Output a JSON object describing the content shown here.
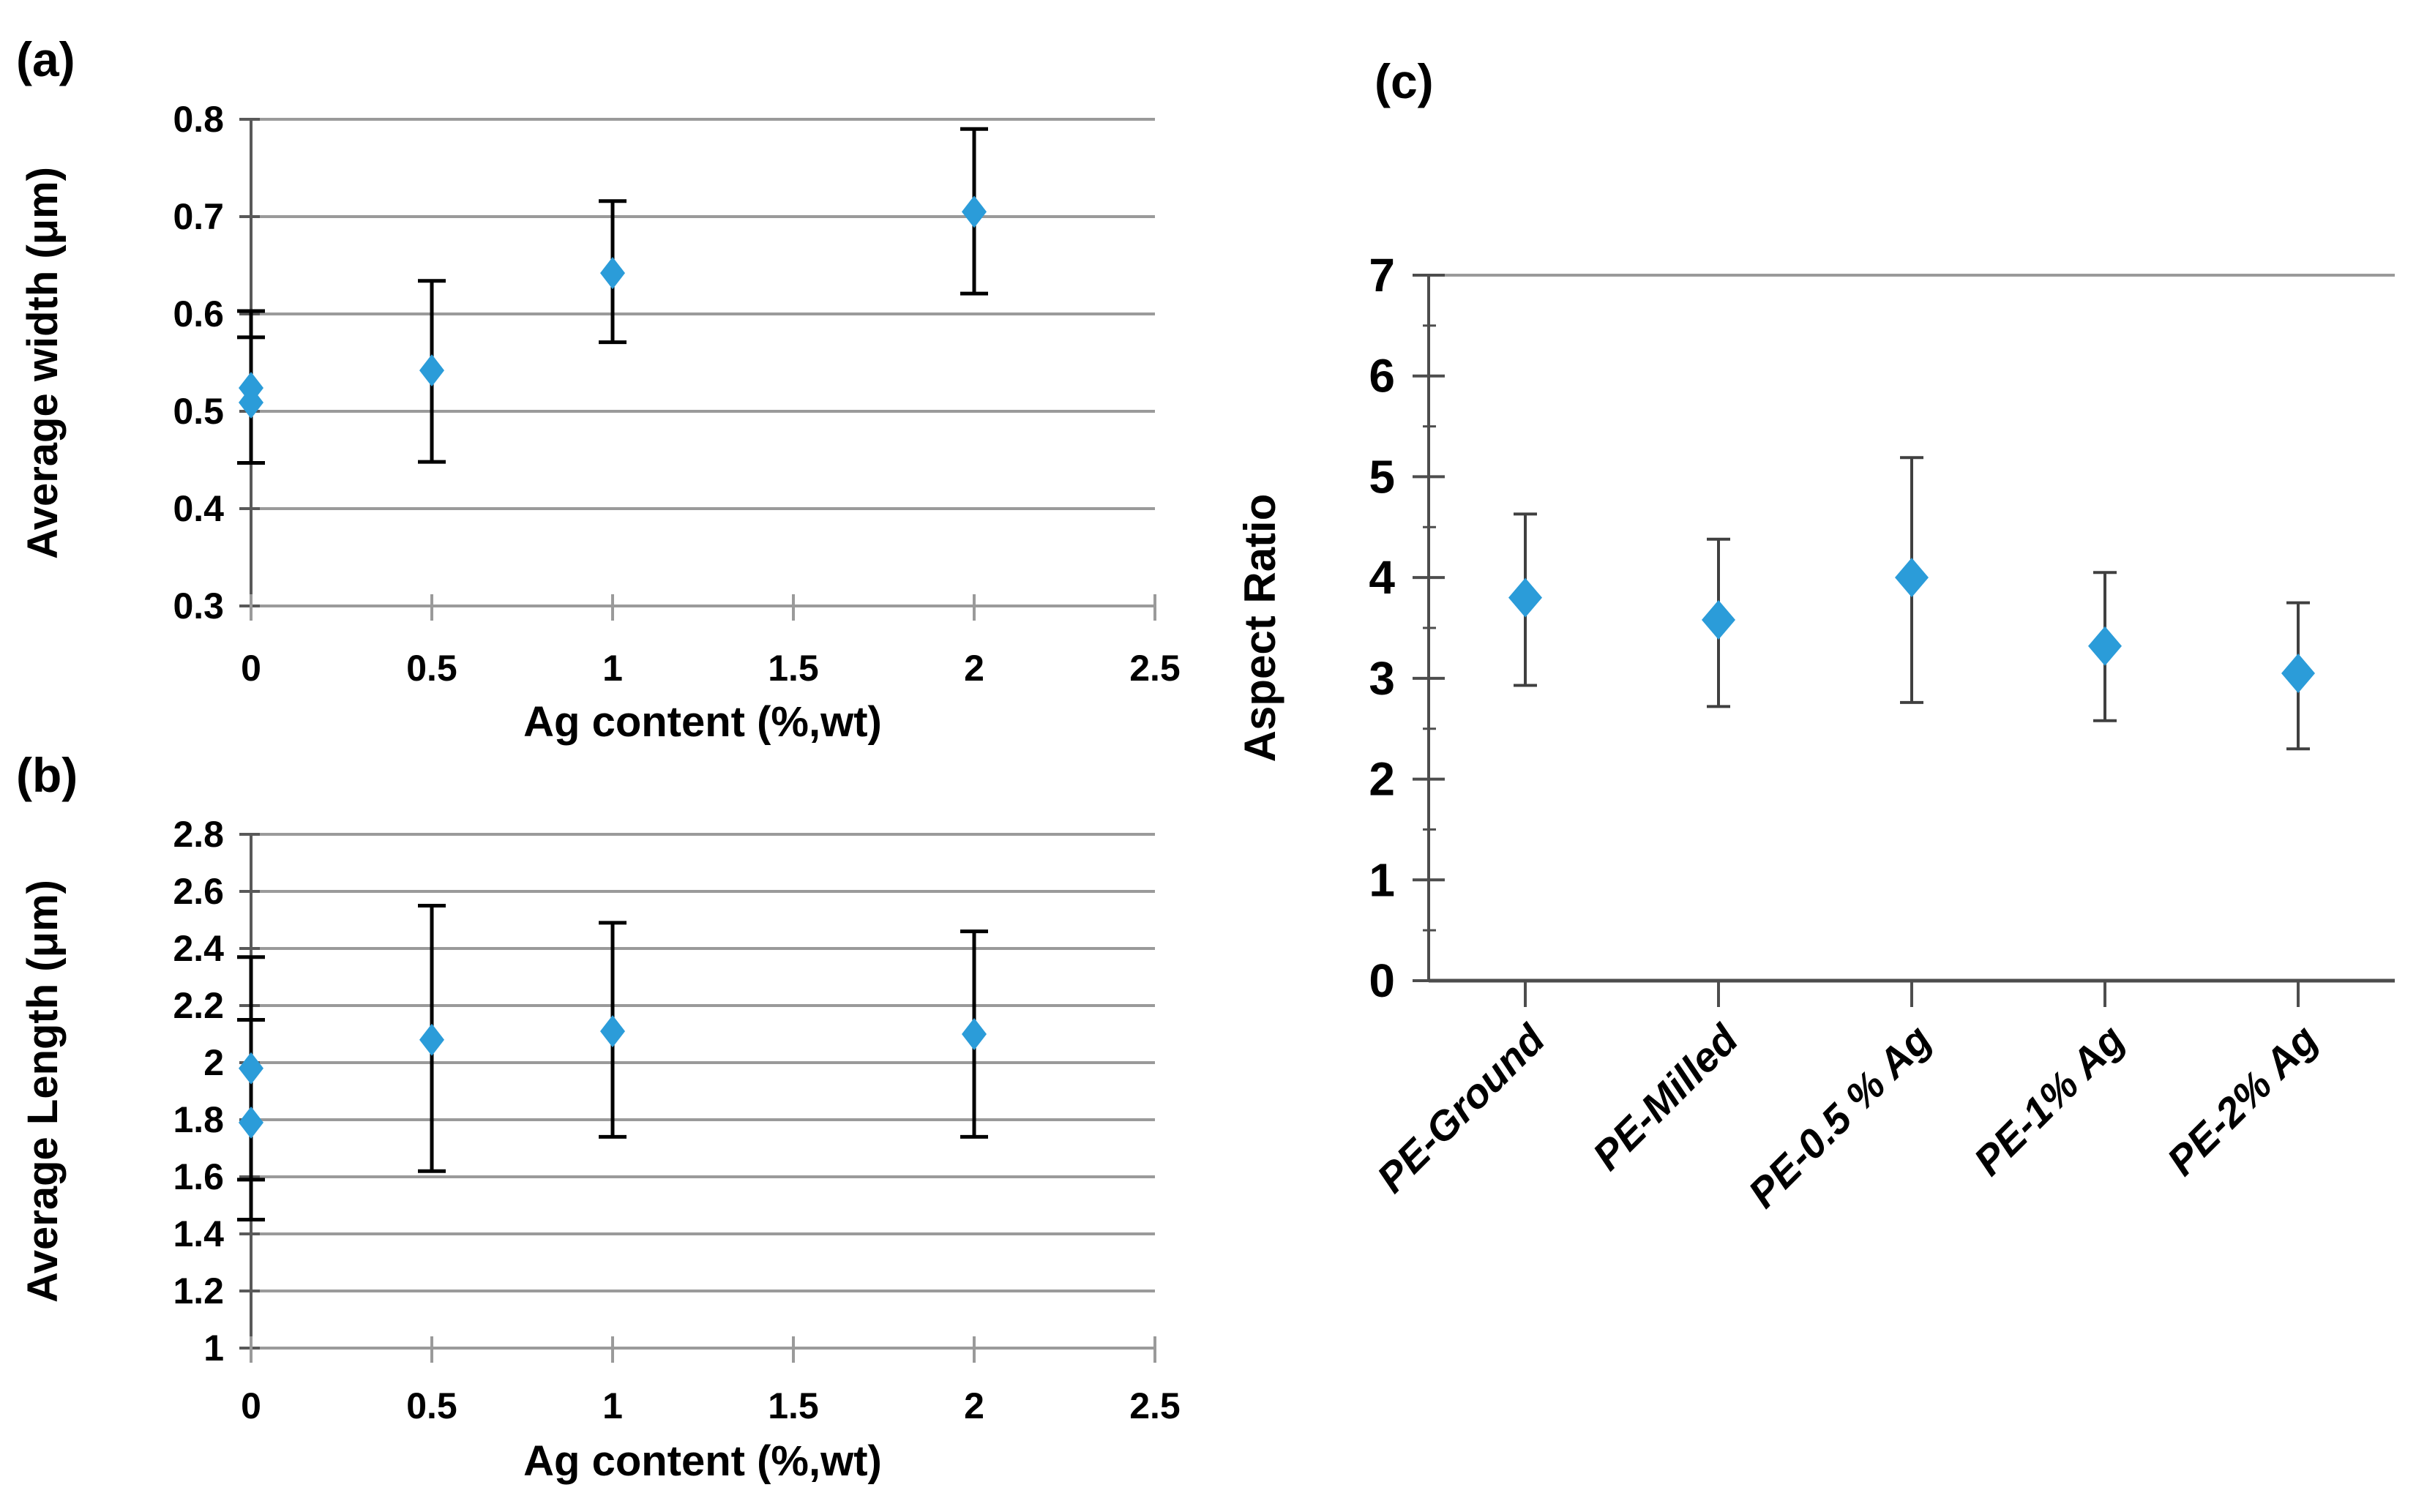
{
  "figure_type": "scientific-multipanel-scatter-figure",
  "colors": {
    "background": "#ffffff",
    "marker_fill": "#2B9CD9",
    "gridline": "#9A9A9A",
    "axis_ab": "#595959",
    "axis_c": "#4D4D4D",
    "error_bar_ab": "#000000",
    "error_bar_c": "#404040",
    "text": "#000000"
  },
  "chart_data": [
    {
      "id": "a",
      "type": "scatter",
      "panel_label": "(a)",
      "xlabel": "Ag content (%,wt)",
      "ylabel": "Average width (μm)",
      "xlim": [
        0,
        2.5
      ],
      "ylim": [
        0.3,
        0.8
      ],
      "grid": "horizontal-all",
      "legend": "none",
      "xticks": [
        {
          "v": 0,
          "label": "0"
        },
        {
          "v": 0.5,
          "label": "0.5"
        },
        {
          "v": 1,
          "label": "1"
        },
        {
          "v": 1.5,
          "label": "1.5"
        },
        {
          "v": 2,
          "label": "2"
        },
        {
          "v": 2.5,
          "label": "2.5"
        }
      ],
      "yticks": [
        {
          "v": 0.8,
          "label": "0.8"
        },
        {
          "v": 0.7,
          "label": "0.7"
        },
        {
          "v": 0.6,
          "label": "0.6"
        },
        {
          "v": 0.5,
          "label": "0.5"
        },
        {
          "v": 0.4,
          "label": "0.4"
        },
        {
          "v": 0.3,
          "label": "0.3"
        }
      ],
      "points": [
        {
          "x": 0,
          "y": 0.524,
          "err_low": 0.447,
          "err_high": 0.603
        },
        {
          "x": 0,
          "y": 0.509,
          "err_low": 0.447,
          "err_high": 0.576
        },
        {
          "x": 0.5,
          "y": 0.542,
          "err_low": 0.448,
          "err_high": 0.634
        },
        {
          "x": 1,
          "y": 0.642,
          "err_low": 0.571,
          "err_high": 0.716
        },
        {
          "x": 2,
          "y": 0.705,
          "err_low": 0.621,
          "err_high": 0.79
        }
      ]
    },
    {
      "id": "b",
      "type": "scatter",
      "panel_label": "(b)",
      "xlabel": "Ag content (%,wt)",
      "ylabel": "Average Length (μm)",
      "xlim": [
        0,
        2.5
      ],
      "ylim": [
        1,
        2.8
      ],
      "grid": "horizontal-all",
      "legend": "none",
      "xticks": [
        {
          "v": 0,
          "label": "0"
        },
        {
          "v": 0.5,
          "label": "0.5"
        },
        {
          "v": 1,
          "label": "1"
        },
        {
          "v": 1.5,
          "label": "1.5"
        },
        {
          "v": 2,
          "label": "2"
        },
        {
          "v": 2.5,
          "label": "2.5"
        }
      ],
      "yticks": [
        {
          "v": 2.8,
          "label": "2.8"
        },
        {
          "v": 2.6,
          "label": "2.6"
        },
        {
          "v": 2.4,
          "label": "2.4"
        },
        {
          "v": 2.2,
          "label": "2.2"
        },
        {
          "v": 2.0,
          "label": "2"
        },
        {
          "v": 1.8,
          "label": "1.8"
        },
        {
          "v": 1.6,
          "label": "1.6"
        },
        {
          "v": 1.4,
          "label": "1.4"
        },
        {
          "v": 1.2,
          "label": "1.2"
        },
        {
          "v": 1.0,
          "label": "1"
        }
      ],
      "points": [
        {
          "x": 0,
          "y": 1.98,
          "err_low": 1.59,
          "err_high": 2.37
        },
        {
          "x": 0,
          "y": 1.79,
          "err_low": 1.45,
          "err_high": 2.15
        },
        {
          "x": 0.5,
          "y": 2.08,
          "err_low": 1.62,
          "err_high": 2.55
        },
        {
          "x": 1,
          "y": 2.11,
          "err_low": 1.74,
          "err_high": 2.49
        },
        {
          "x": 2,
          "y": 2.1,
          "err_low": 1.74,
          "err_high": 2.46
        }
      ]
    },
    {
      "id": "c",
      "type": "scatter-category",
      "panel_label": "(c)",
      "xlabel": "",
      "ylabel": "Aspect Ratio",
      "ylim": [
        0,
        7
      ],
      "grid": "top-border-only",
      "legend": "none",
      "categories": [
        "PE-Ground",
        "PE-Milled",
        "PE-0.5 % Ag",
        "PE-1% Ag",
        "PE-2% Ag"
      ],
      "yticks": [
        {
          "v": 7,
          "label": "7"
        },
        {
          "v": 6,
          "label": "6"
        },
        {
          "v": 5,
          "label": "5"
        },
        {
          "v": 4,
          "label": "4"
        },
        {
          "v": 3,
          "label": "3"
        },
        {
          "v": 2,
          "label": "2"
        },
        {
          "v": 1,
          "label": "1"
        },
        {
          "v": 0,
          "label": "0"
        }
      ],
      "minor_ytick_step": 0.5,
      "points": [
        {
          "category": "PE-Ground",
          "y": 3.8,
          "err_low": 2.93,
          "err_high": 4.63
        },
        {
          "category": "PE-Milled",
          "y": 3.58,
          "err_low": 2.72,
          "err_high": 4.38
        },
        {
          "category": "PE-0.5 % Ag",
          "y": 4.0,
          "err_low": 2.76,
          "err_high": 5.19
        },
        {
          "category": "PE-1% Ag",
          "y": 3.32,
          "err_low": 2.58,
          "err_high": 4.05
        },
        {
          "category": "PE-2% Ag",
          "y": 3.05,
          "err_low": 2.3,
          "err_high": 3.75
        }
      ]
    }
  ]
}
